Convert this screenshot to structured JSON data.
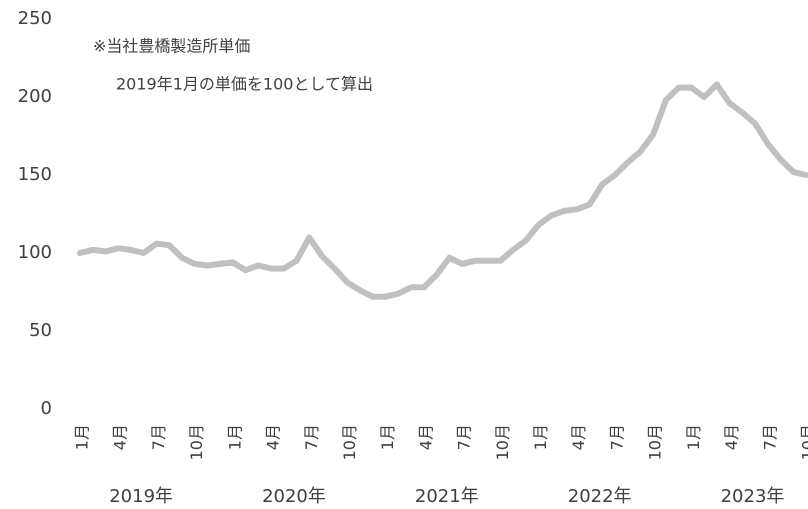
{
  "chart_data": {
    "type": "line",
    "annotations": [
      "※当社豊橋製造所単価",
      "2019年1月の単価を100として算出"
    ],
    "categories": [
      "1月",
      null,
      null,
      "4月",
      null,
      null,
      "7月",
      null,
      null,
      "10月",
      null,
      null,
      "1月",
      null,
      null,
      "4月",
      null,
      null,
      "7月",
      null,
      null,
      "10月",
      null,
      null,
      "1月",
      null,
      null,
      "4月",
      null,
      null,
      "7月",
      null,
      null,
      "10月",
      null,
      null,
      "1月",
      null,
      null,
      "4月",
      null,
      null,
      "7月",
      null,
      null,
      "10月",
      null,
      null,
      "1月",
      null,
      null,
      "4月",
      null,
      null,
      "7月",
      null,
      null,
      "10月"
    ],
    "year_labels": [
      "2019年",
      "2020年",
      "2021年",
      "2022年",
      "2023年"
    ],
    "series": [
      {
        "color": "#c0c0c0",
        "values": [
          100,
          102,
          101,
          103,
          102,
          100,
          106,
          105,
          97,
          93,
          92,
          93,
          94,
          89,
          92,
          90,
          90,
          95,
          110,
          98,
          90,
          81,
          76,
          72,
          72,
          74,
          78,
          78,
          86,
          97,
          93,
          95,
          95,
          95,
          102,
          108,
          118,
          124,
          127,
          128,
          131,
          144,
          150,
          158,
          165,
          176,
          198,
          206,
          206,
          200,
          208,
          196,
          190,
          183,
          170,
          160,
          152,
          150
        ]
      }
    ],
    "ylim": [
      0,
      250
    ],
    "yticks": [
      0,
      50,
      100,
      150,
      200,
      250
    ],
    "grid": false
  }
}
